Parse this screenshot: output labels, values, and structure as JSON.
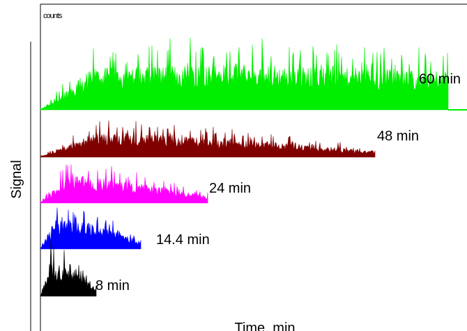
{
  "chart_data": {
    "type": "area",
    "title": "",
    "corner_label": "counts",
    "xlabel": "Time, min",
    "ylabel": "Signal",
    "grid": false,
    "legend": "none (inline trace labels)",
    "series": [
      {
        "name": "60 min",
        "color": "#00ee00",
        "x_range": [
          0,
          60
        ],
        "relative_peak": 0.85,
        "baseline_offset": 4
      },
      {
        "name": "48 min",
        "color": "#800000",
        "x_range": [
          0,
          48
        ],
        "relative_peak": 0.55,
        "baseline_offset": 3
      },
      {
        "name": "24 min",
        "color": "#ff00ff",
        "x_range": [
          0,
          24
        ],
        "relative_peak": 0.65,
        "baseline_offset": 2
      },
      {
        "name": "14.4 min",
        "color": "#0000ff",
        "x_range": [
          0,
          14.4
        ],
        "relative_peak": 0.7,
        "baseline_offset": 1
      },
      {
        "name": "8 min",
        "color": "#000000",
        "x_range": [
          0,
          8
        ],
        "relative_peak": 0.75,
        "baseline_offset": 0
      }
    ]
  }
}
